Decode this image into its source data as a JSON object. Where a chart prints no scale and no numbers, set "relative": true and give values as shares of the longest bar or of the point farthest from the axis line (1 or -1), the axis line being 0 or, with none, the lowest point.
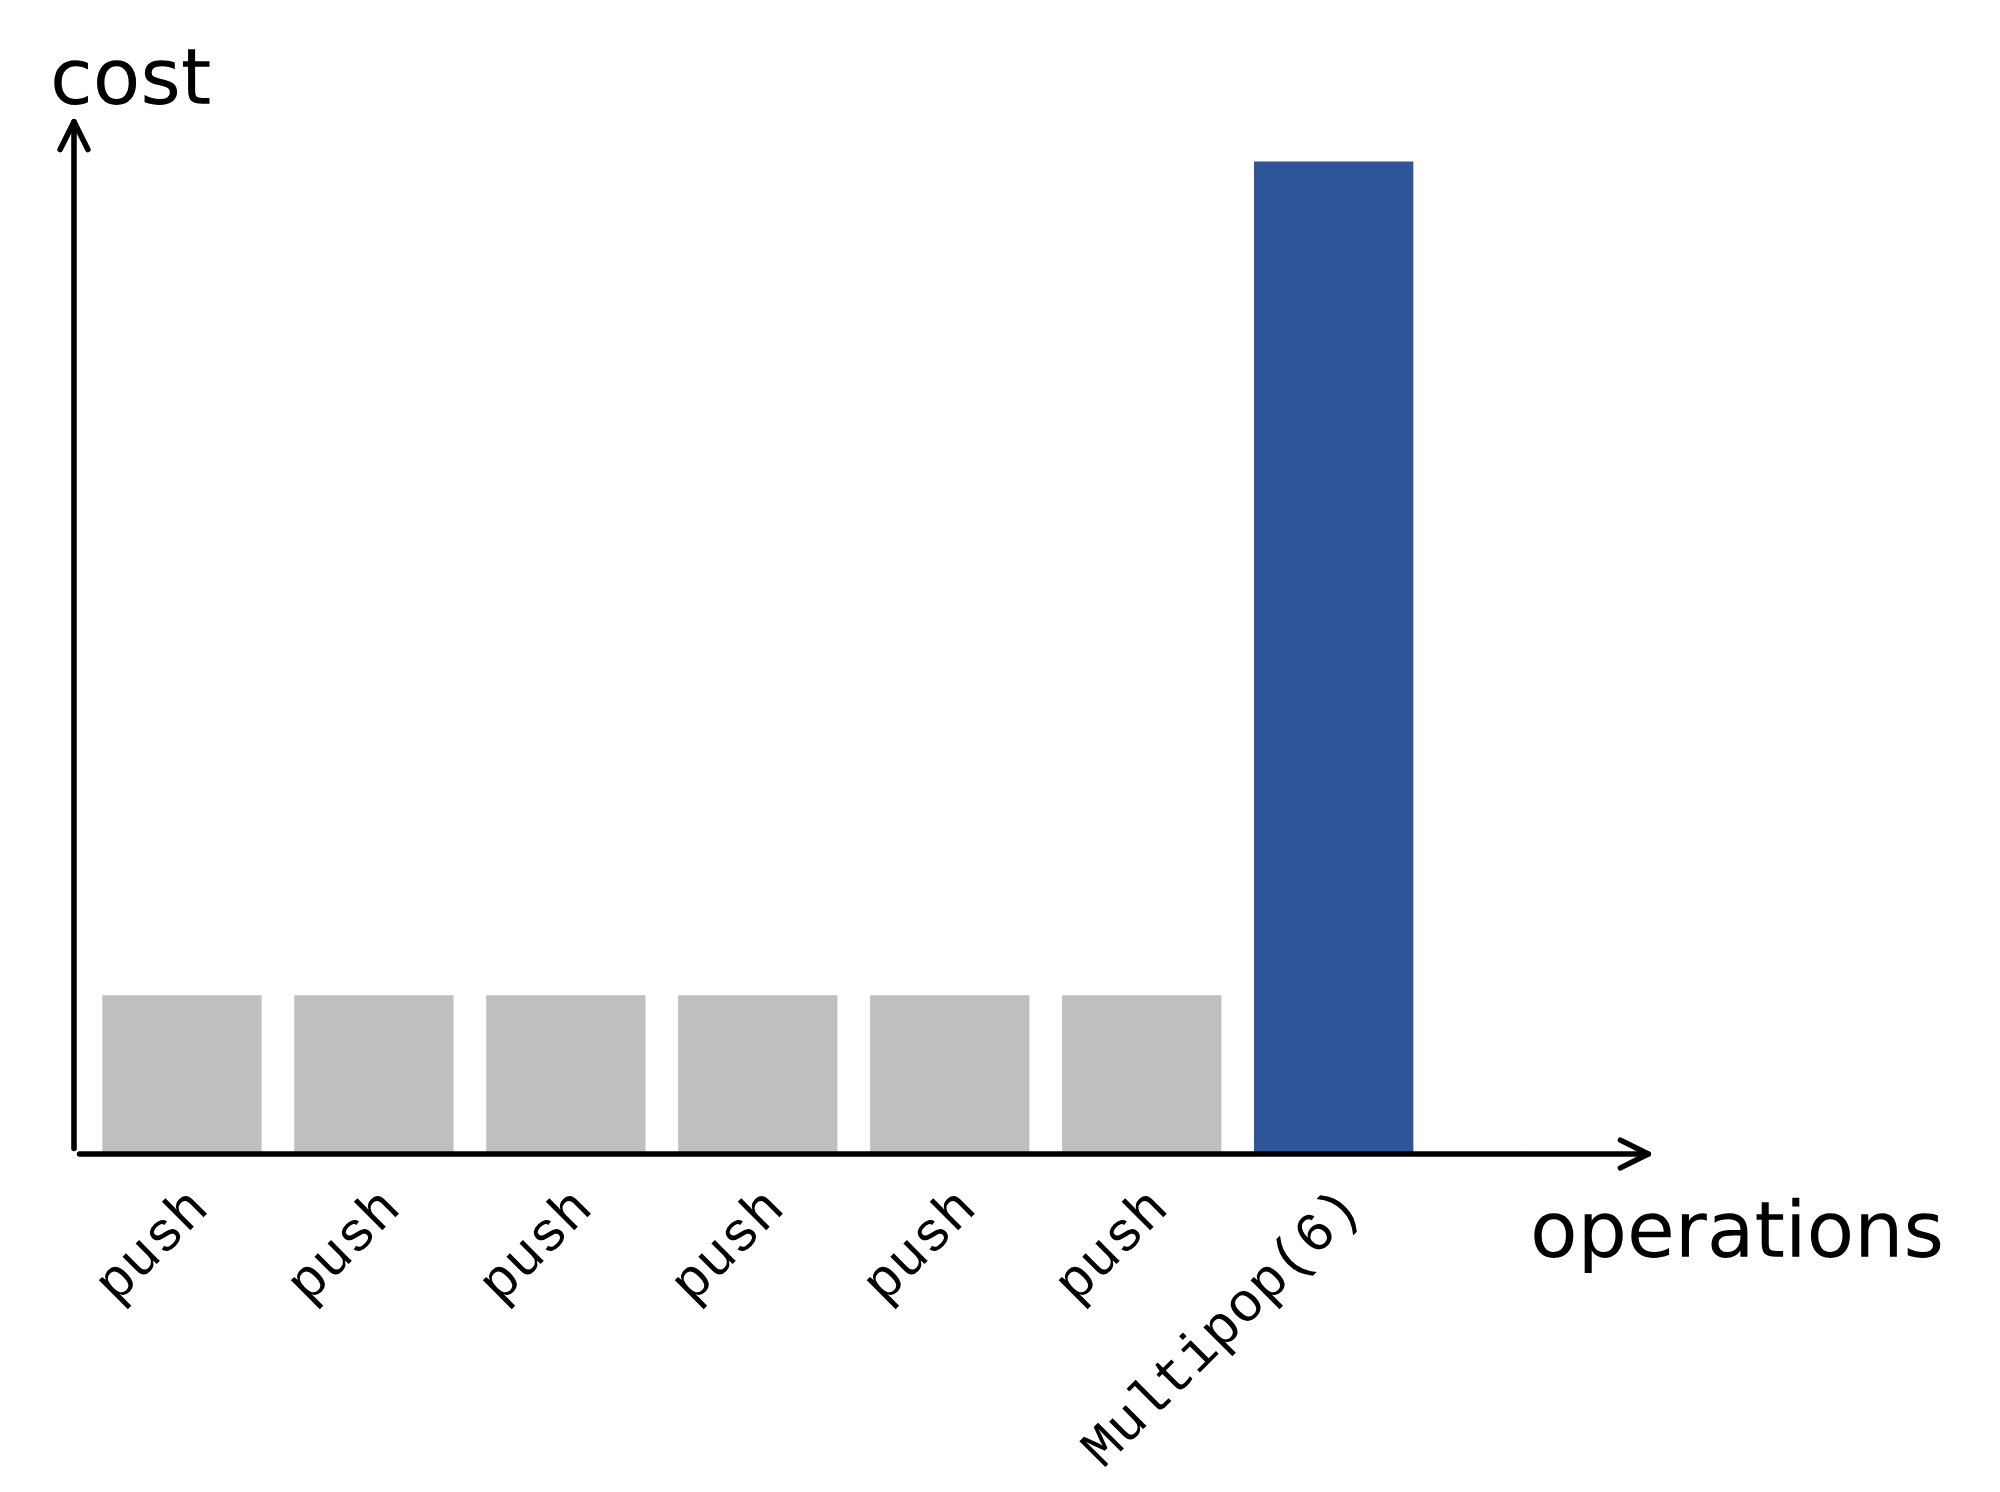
{
  "chart_data": {
    "type": "bar",
    "relative": true,
    "xlabel": "operations",
    "ylabel": "cost",
    "categories": [
      "push",
      "push",
      "push",
      "push",
      "push",
      "push",
      "Multipop(6)"
    ],
    "values": [
      0.16,
      0.16,
      0.16,
      0.16,
      0.16,
      0.16,
      1
    ],
    "colors": [
      "#bfbfbf",
      "#bfbfbf",
      "#bfbfbf",
      "#bfbfbf",
      "#bfbfbf",
      "#bfbfbf",
      "#2e5597"
    ],
    "grid": false,
    "legend": false
  }
}
